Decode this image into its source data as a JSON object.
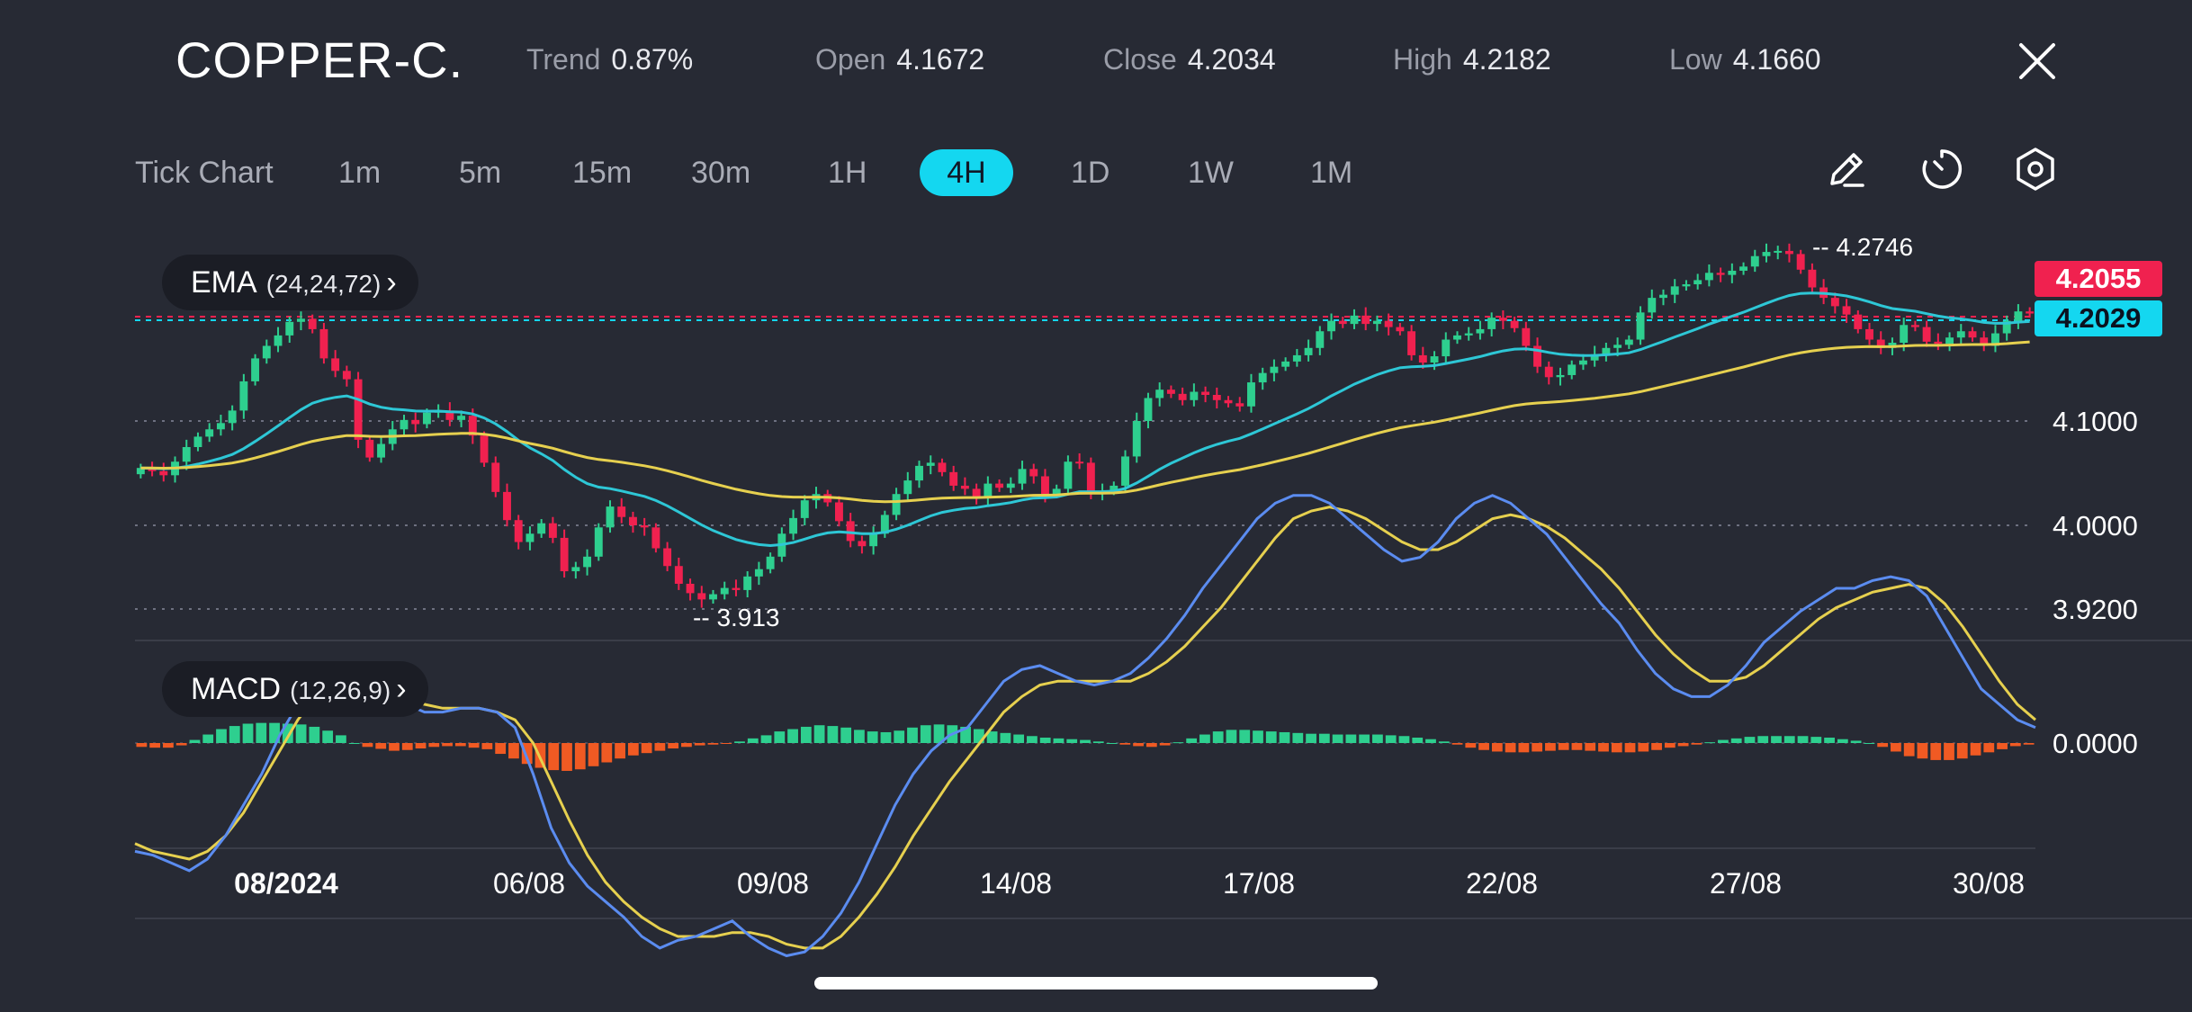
{
  "header": {
    "symbol": "COPPER-C.",
    "stats": [
      {
        "label": "Trend",
        "value": "0.87%"
      },
      {
        "label": "Open",
        "value": "4.1672"
      },
      {
        "label": "Close",
        "value": "4.2034"
      },
      {
        "label": "High",
        "value": "4.2182"
      },
      {
        "label": "Low",
        "value": "4.1660"
      }
    ],
    "close_icon": "close-icon"
  },
  "timeframes": {
    "items": [
      "Tick Chart",
      "1m",
      "5m",
      "15m",
      "30m",
      "1H",
      "4H",
      "1D",
      "1W",
      "1M"
    ],
    "active": "4H"
  },
  "tools": [
    "pencil-icon",
    "timer-icon",
    "settings-hexagon-icon"
  ],
  "colors": {
    "background": "#272a34",
    "bull": "#2ecf8f",
    "bear": "#f0214f",
    "ema_fast": "#2ec7d6",
    "ema_slow": "#e6d04f",
    "macd_line": "#5b8cf0",
    "signal_line": "#e6d04f",
    "hist_pos": "#2ecf8f",
    "hist_neg": "#f05a23",
    "accent": "#14d7f0"
  },
  "indicators": {
    "ema": {
      "name": "EMA",
      "params": "(24,24,72)"
    },
    "macd": {
      "name": "MACD",
      "params": "(12,26,9)"
    }
  },
  "chart_data": {
    "type": "candlestick",
    "symbol": "COPPER-C.",
    "interval": "4H",
    "price_axis": {
      "ticks": [
        "4.1000",
        "4.0000",
        "3.9200"
      ],
      "ylim": [
        3.87,
        4.33
      ]
    },
    "macd_axis": {
      "ticks": [
        "0.0000"
      ]
    },
    "x_labels": [
      "08/2024",
      "06/08",
      "09/08",
      "14/08",
      "17/08",
      "22/08",
      "27/08",
      "30/08"
    ],
    "current_price_bid": "4.2055",
    "current_price_ask": "4.2029",
    "annotations": {
      "high": "4.2746",
      "low": "3.913"
    },
    "closes": [
      4.055,
      4.052,
      4.048,
      4.061,
      4.075,
      4.085,
      4.092,
      4.098,
      4.11,
      4.138,
      4.16,
      4.172,
      4.182,
      4.195,
      4.198,
      4.188,
      4.16,
      4.148,
      4.14,
      4.082,
      4.065,
      4.078,
      4.092,
      4.101,
      4.097,
      4.108,
      4.11,
      4.101,
      4.105,
      4.086,
      4.06,
      4.032,
      4.005,
      3.984,
      3.992,
      4.002,
      3.988,
      3.956,
      3.96,
      3.97,
      3.998,
      4.018,
      4.008,
      4.0,
      3.998,
      3.978,
      3.961,
      3.944,
      3.935,
      3.929,
      3.934,
      3.94,
      3.938,
      3.951,
      3.958,
      3.97,
      3.992,
      4.007,
      4.024,
      4.03,
      4.022,
      4.004,
      3.985,
      3.98,
      3.992,
      4.01,
      4.03,
      4.043,
      4.057,
      4.06,
      4.051,
      4.038,
      4.035,
      4.027,
      4.04,
      4.036,
      4.04,
      4.054,
      4.047,
      4.03,
      4.035,
      4.061,
      4.06,
      4.032,
      4.033,
      4.038,
      4.066,
      4.1,
      4.122,
      4.13,
      4.126,
      4.12,
      4.128,
      4.125,
      4.12,
      4.117,
      4.114,
      4.137,
      4.146,
      4.152,
      4.157,
      4.163,
      4.17,
      4.186,
      4.196,
      4.193,
      4.201,
      4.193,
      4.196,
      4.19,
      4.186,
      4.163,
      4.156,
      4.162,
      4.178,
      4.182,
      4.184,
      4.188,
      4.199,
      4.196,
      4.189,
      4.172,
      4.152,
      4.142,
      4.144,
      4.154,
      4.158,
      4.164,
      4.17,
      4.173,
      4.178,
      4.204,
      4.218,
      4.221,
      4.229,
      4.231,
      4.235,
      4.242,
      4.24,
      4.244,
      4.248,
      4.258,
      4.262,
      4.263,
      4.26,
      4.245,
      4.228,
      4.218,
      4.21,
      4.202,
      4.188,
      4.178,
      4.17,
      4.175,
      4.192,
      4.19,
      4.176,
      4.174,
      4.18,
      4.186,
      4.18,
      4.172,
      4.184,
      4.196,
      4.205,
      4.203
    ],
    "macd_hist": [
      -0.001,
      -0.0012,
      -0.0012,
      -0.0006,
      0.0008,
      0.0022,
      0.0036,
      0.0044,
      0.005,
      0.0052,
      0.0052,
      0.005,
      0.0048,
      0.0042,
      0.0032,
      0.002,
      0.0,
      -0.001,
      -0.0015,
      -0.002,
      -0.0018,
      -0.0014,
      -0.001,
      -0.0008,
      -0.0008,
      -0.0012,
      -0.0016,
      -0.0028,
      -0.004,
      -0.0054,
      -0.0064,
      -0.007,
      -0.0072,
      -0.0068,
      -0.006,
      -0.005,
      -0.004,
      -0.0032,
      -0.0026,
      -0.002,
      -0.0014,
      -0.001,
      -0.0006,
      -0.0004,
      -0.0002,
      0.0004,
      0.0012,
      0.002,
      0.003,
      0.0036,
      0.0042,
      0.0046,
      0.0044,
      0.004,
      0.0034,
      0.003,
      0.0028,
      0.0032,
      0.004,
      0.0046,
      0.0048,
      0.0046,
      0.0042,
      0.0036,
      0.003,
      0.0026,
      0.0022,
      0.0018,
      0.0014,
      0.0012,
      0.001,
      0.0008,
      0.0004,
      0.0,
      -0.0004,
      -0.0008,
      -0.001,
      -0.0006,
      0.0002,
      0.0012,
      0.0022,
      0.003,
      0.0034,
      0.0034,
      0.0032,
      0.003,
      0.0028,
      0.0026,
      0.0024,
      0.0024,
      0.0022,
      0.0022,
      0.0022,
      0.0022,
      0.002,
      0.0018,
      0.0014,
      0.001,
      0.0004,
      -0.0004,
      -0.0012,
      -0.0018,
      -0.0022,
      -0.0024,
      -0.0024,
      -0.0022,
      -0.002,
      -0.0018,
      -0.0018,
      -0.002,
      -0.0022,
      -0.0024,
      -0.0024,
      -0.0022,
      -0.0018,
      -0.0012,
      -0.0008,
      -0.0004,
      0.0002,
      0.0008,
      0.0012,
      0.0016,
      0.0018,
      0.0018,
      0.0018,
      0.0018,
      0.0016,
      0.0014,
      0.001,
      0.0006,
      0.0,
      -0.001,
      -0.0022,
      -0.0034,
      -0.004,
      -0.0044,
      -0.0044,
      -0.004,
      -0.0032,
      -0.0024,
      -0.0016,
      -0.0008,
      -0.0004
    ],
    "macd_line": [
      -0.028,
      -0.029,
      -0.031,
      -0.033,
      -0.03,
      -0.024,
      -0.016,
      -0.008,
      0.002,
      0.01,
      0.016,
      0.019,
      0.018,
      0.014,
      0.012,
      0.01,
      0.008,
      0.008,
      0.009,
      0.009,
      0.008,
      0.004,
      -0.008,
      -0.022,
      -0.031,
      -0.037,
      -0.041,
      -0.045,
      -0.05,
      -0.053,
      -0.051,
      -0.05,
      -0.048,
      -0.046,
      -0.05,
      -0.053,
      -0.055,
      -0.054,
      -0.05,
      -0.044,
      -0.036,
      -0.026,
      -0.016,
      -0.008,
      -0.002,
      0.002,
      0.004,
      0.01,
      0.016,
      0.019,
      0.02,
      0.018,
      0.016,
      0.015,
      0.016,
      0.018,
      0.022,
      0.027,
      0.033,
      0.04,
      0.046,
      0.052,
      0.058,
      0.062,
      0.064,
      0.064,
      0.062,
      0.058,
      0.054,
      0.05,
      0.047,
      0.048,
      0.052,
      0.058,
      0.062,
      0.064,
      0.062,
      0.058,
      0.054,
      0.048,
      0.042,
      0.036,
      0.031,
      0.024,
      0.018,
      0.014,
      0.012,
      0.012,
      0.015,
      0.02,
      0.026,
      0.03,
      0.034,
      0.037,
      0.04,
      0.04,
      0.042,
      0.043,
      0.042,
      0.038,
      0.03,
      0.022,
      0.014,
      0.01,
      0.006,
      0.004
    ],
    "signal_line": [
      -0.026,
      -0.028,
      -0.029,
      -0.03,
      -0.028,
      -0.024,
      -0.018,
      -0.01,
      -0.002,
      0.006,
      0.012,
      0.015,
      0.016,
      0.015,
      0.013,
      0.011,
      0.01,
      0.009,
      0.009,
      0.009,
      0.008,
      0.006,
      0.0,
      -0.01,
      -0.02,
      -0.029,
      -0.036,
      -0.041,
      -0.045,
      -0.048,
      -0.05,
      -0.05,
      -0.05,
      -0.049,
      -0.049,
      -0.05,
      -0.052,
      -0.053,
      -0.053,
      -0.05,
      -0.045,
      -0.039,
      -0.032,
      -0.024,
      -0.017,
      -0.01,
      -0.004,
      0.002,
      0.008,
      0.012,
      0.015,
      0.016,
      0.016,
      0.016,
      0.016,
      0.016,
      0.018,
      0.021,
      0.025,
      0.03,
      0.035,
      0.041,
      0.047,
      0.053,
      0.058,
      0.06,
      0.061,
      0.06,
      0.058,
      0.055,
      0.052,
      0.05,
      0.05,
      0.052,
      0.055,
      0.058,
      0.059,
      0.058,
      0.056,
      0.053,
      0.049,
      0.045,
      0.04,
      0.034,
      0.028,
      0.023,
      0.019,
      0.016,
      0.016,
      0.017,
      0.02,
      0.024,
      0.028,
      0.032,
      0.035,
      0.037,
      0.039,
      0.04,
      0.041,
      0.04,
      0.036,
      0.03,
      0.023,
      0.016,
      0.01,
      0.006
    ]
  }
}
